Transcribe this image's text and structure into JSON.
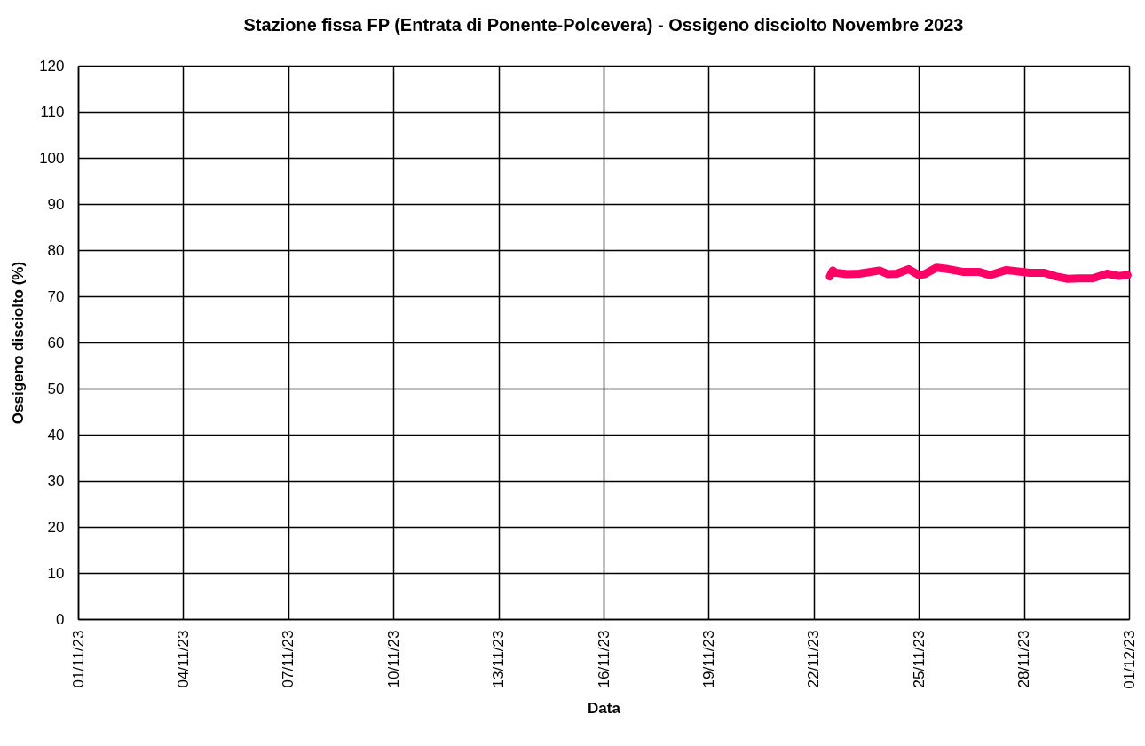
{
  "chart_data": {
    "type": "line",
    "title": "Stazione fissa FP (Entrata di Ponente-Polcevera) - Ossigeno disciolto Novembre 2023",
    "xlabel": "Data",
    "ylabel": "Ossigeno disciolto (%)",
    "x": [
      "2023-11-22T11:00",
      "2023-11-22T13:00",
      "2023-11-22T15:00",
      "2023-11-22T23:00",
      "2023-11-23T07:00",
      "2023-11-23T11:00",
      "2023-11-23T15:00",
      "2023-11-23T21:00",
      "2023-11-24T03:00",
      "2023-11-24T09:00",
      "2023-11-24T17:00",
      "2023-11-25T00:00",
      "2023-11-25T04:00",
      "2023-11-25T12:00",
      "2023-11-25T20:00",
      "2023-11-26T06:00",
      "2023-11-26T17:00",
      "2023-11-27T01:00",
      "2023-11-27T12:00",
      "2023-11-27T20:00",
      "2023-11-28T04:00",
      "2023-11-28T14:00",
      "2023-11-28T22:00",
      "2023-11-29T06:00",
      "2023-11-29T14:00",
      "2023-11-29T23:00",
      "2023-11-30T09:00",
      "2023-11-30T17:00",
      "2023-11-30T23:00"
    ],
    "series": [
      {
        "color": "#ff0066",
        "values": [
          74.3,
          75.6,
          75.1,
          74.8,
          74.9,
          75.1,
          75.3,
          75.6,
          74.8,
          74.9,
          75.9,
          74.6,
          74.8,
          76.2,
          75.9,
          75.3,
          75.3,
          74.6,
          75.7,
          75.4,
          75.1,
          75.1,
          74.3,
          73.8,
          73.9,
          73.9,
          74.9,
          74.4,
          74.6
        ]
      }
    ],
    "xlim": [
      "2023-11-01",
      "2023-12-01"
    ],
    "xticks": [
      {
        "value": "2023-11-01",
        "label": "01/11/23"
      },
      {
        "value": "2023-11-04",
        "label": "04/11/23"
      },
      {
        "value": "2023-11-07",
        "label": "07/11/23"
      },
      {
        "value": "2023-11-10",
        "label": "10/11/23"
      },
      {
        "value": "2023-11-13",
        "label": "13/11/23"
      },
      {
        "value": "2023-11-16",
        "label": "16/11/23"
      },
      {
        "value": "2023-11-19",
        "label": "19/11/23"
      },
      {
        "value": "2023-11-22",
        "label": "22/11/23"
      },
      {
        "value": "2023-11-25",
        "label": "25/11/23"
      },
      {
        "value": "2023-11-28",
        "label": "28/11/23"
      },
      {
        "value": "2023-12-01",
        "label": "01/12/23"
      }
    ],
    "ylim": [
      0,
      120
    ],
    "yticks": [
      0,
      10,
      20,
      30,
      40,
      50,
      60,
      70,
      80,
      90,
      100,
      110,
      120
    ],
    "grid": true,
    "line_style": "solid"
  }
}
